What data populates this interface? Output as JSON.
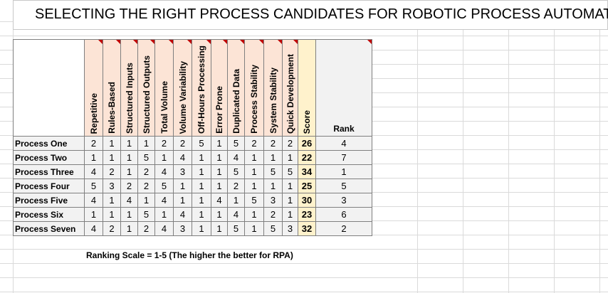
{
  "title": "SELECTING THE RIGHT PROCESS CANDIDATES FOR ROBOTIC PROCESS AUTOMATION",
  "table": {
    "criteria": [
      "Repetitive",
      "Rules-Based",
      "Structured Inputs",
      "Structured Outputs",
      "Total Volume",
      "Volume Variability",
      "Off-Hours Processing",
      "Error Prone",
      "Duplicated Data",
      "Process Stability",
      "System Stability",
      "Quick Development"
    ],
    "score_header": "Score",
    "rank_header": "Rank",
    "rows": [
      {
        "name": "Process One",
        "scores": [
          2,
          1,
          1,
          1,
          2,
          2,
          5,
          1,
          5,
          2,
          2,
          2
        ],
        "score": 26,
        "rank": 4
      },
      {
        "name": "Process Two",
        "scores": [
          1,
          1,
          1,
          5,
          1,
          4,
          1,
          1,
          4,
          1,
          1,
          1
        ],
        "score": 22,
        "rank": 7
      },
      {
        "name": "Process Three",
        "scores": [
          4,
          2,
          1,
          2,
          4,
          3,
          1,
          1,
          5,
          1,
          5,
          5
        ],
        "score": 34,
        "rank": 1
      },
      {
        "name": "Process Four",
        "scores": [
          5,
          3,
          2,
          2,
          5,
          1,
          1,
          1,
          2,
          1,
          1,
          1
        ],
        "score": 25,
        "rank": 5
      },
      {
        "name": "Process Five",
        "scores": [
          4,
          1,
          4,
          1,
          4,
          1,
          1,
          4,
          1,
          5,
          3,
          1
        ],
        "score": 30,
        "rank": 3
      },
      {
        "name": "Process Six",
        "scores": [
          1,
          1,
          1,
          5,
          1,
          4,
          1,
          1,
          4,
          1,
          2,
          1
        ],
        "score": 23,
        "rank": 6
      },
      {
        "name": "Process Seven",
        "scores": [
          4,
          2,
          1,
          2,
          4,
          3,
          1,
          1,
          5,
          1,
          5,
          3
        ],
        "score": 32,
        "rank": 2
      }
    ]
  },
  "note": "Ranking Scale = 1-5 (The higher the better for RPA)"
}
